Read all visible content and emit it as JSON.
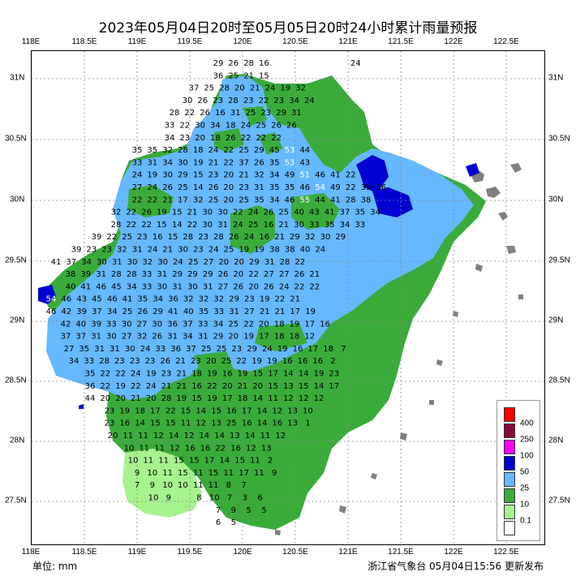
{
  "title": "2023年05月04日20时至05月05日20时24小时累计雨量预报",
  "lon_labels": [
    "118E",
    "118.5E",
    "119E",
    "119.5E",
    "120E",
    "120.5E",
    "121E",
    "121.5E",
    "122E",
    "122.5E"
  ],
  "lat_labels": [
    "31N",
    "30.5N",
    "30N",
    "29.5N",
    "29N",
    "28.5N",
    "28N",
    "27.5N"
  ],
  "unit_label": "单位:  mm",
  "issuer": "浙江省气象台  05月04日15:56  更新发布",
  "legend": [
    {
      "label": "400",
      "color": "#ff0000"
    },
    {
      "label": "250",
      "color": "#8b0a3e"
    },
    {
      "label": "100",
      "color": "#ff00ff"
    },
    {
      "label": "50",
      "color": "#0000d0"
    },
    {
      "label": "25",
      "color": "#66b8ff"
    },
    {
      "label": "10",
      "color": "#3aab3a"
    },
    {
      "label": "0.1",
      "color": "#a6f28f"
    },
    {
      "label": "",
      "color": "#ffffff"
    }
  ],
  "colors": {
    "no_data": "#808080",
    "grid": "#888888"
  },
  "rain_values": [
    [
      "29",
      "26",
      "28",
      "16",
      "",
      "",
      "",
      "",
      "",
      "24"
    ],
    [
      "36",
      "25",
      "21",
      "15",
      "",
      "",
      "",
      "",
      "",
      "",
      ""
    ],
    [
      "37",
      "25",
      "28",
      "20",
      "21",
      "24",
      "19",
      "32"
    ],
    [
      "30",
      "26",
      "23",
      "28",
      "23",
      "22",
      "23",
      "34",
      "24"
    ],
    [
      "28",
      "22",
      "26",
      "16",
      "31",
      "25",
      "23",
      "29",
      "31"
    ],
    [
      "33",
      "22",
      "30",
      "34",
      "18",
      "24",
      "25",
      "26",
      "26"
    ],
    [
      "34",
      "23",
      "20",
      "18",
      "26",
      "22",
      "22",
      "22"
    ],
    [
      "35",
      "35",
      "32",
      "28",
      "18",
      "24",
      "22",
      "25",
      "29",
      "45",
      "53",
      "44"
    ],
    [
      "33",
      "31",
      "34",
      "30",
      "19",
      "21",
      "22",
      "37",
      "26",
      "35",
      "53",
      "43"
    ],
    [
      "24",
      "19",
      "30",
      "29",
      "15",
      "23",
      "20",
      "21",
      "32",
      "34",
      "49",
      "51",
      "46",
      "41",
      "22"
    ],
    [
      "27",
      "24",
      "26",
      "25",
      "14",
      "26",
      "20",
      "23",
      "31",
      "35",
      "35",
      "46",
      "54",
      "49",
      "22",
      "39",
      "36"
    ],
    [
      "22",
      "22",
      "21",
      "17",
      "32",
      "25",
      "20",
      "25",
      "35",
      "34",
      "46",
      "55",
      "44",
      "41",
      "28",
      "38"
    ],
    [
      "32",
      "22",
      "26",
      "19",
      "15",
      "21",
      "30",
      "30",
      "22",
      "24",
      "26",
      "25",
      "40",
      "43",
      "41",
      "37",
      "35",
      "34"
    ],
    [
      "28",
      "22",
      "22",
      "15",
      "14",
      "22",
      "30",
      "31",
      "24",
      "25",
      "16",
      "21",
      "30",
      "33",
      "35",
      "34",
      "33"
    ],
    [
      "39",
      "22",
      "25",
      "23",
      "16",
      "15",
      "28",
      "23",
      "28",
      "26",
      "24",
      "16",
      "21",
      "29",
      "32",
      "30",
      "29"
    ],
    [
      "39",
      "23",
      "23",
      "32",
      "31",
      "24",
      "21",
      "30",
      "23",
      "24",
      "25",
      "19",
      "19",
      "38",
      "38",
      "40",
      "24"
    ],
    [
      "41",
      "37",
      "34",
      "30",
      "31",
      "30",
      "32",
      "30",
      "24",
      "25",
      "27",
      "20",
      "20",
      "29",
      "31",
      "28",
      "22"
    ],
    [
      "38",
      "39",
      "31",
      "28",
      "28",
      "33",
      "31",
      "29",
      "29",
      "29",
      "26",
      "20",
      "22",
      "27",
      "27",
      "26",
      "21"
    ],
    [
      "40",
      "41",
      "46",
      "45",
      "34",
      "33",
      "30",
      "31",
      "30",
      "31",
      "27",
      "26",
      "20",
      "26",
      "24",
      "22",
      "22"
    ],
    [
      "54",
      "46",
      "43",
      "45",
      "46",
      "41",
      "35",
      "34",
      "36",
      "32",
      "32",
      "32",
      "29",
      "23",
      "19",
      "22",
      "21"
    ],
    [
      "46",
      "42",
      "39",
      "37",
      "34",
      "25",
      "26",
      "29",
      "41",
      "40",
      "35",
      "33",
      "31",
      "27",
      "21",
      "21",
      "17",
      "19"
    ],
    [
      "42",
      "40",
      "39",
      "33",
      "30",
      "27",
      "30",
      "36",
      "37",
      "33",
      "34",
      "25",
      "22",
      "20",
      "18",
      "19",
      "17",
      "16"
    ],
    [
      "37",
      "37",
      "31",
      "30",
      "27",
      "32",
      "26",
      "31",
      "34",
      "31",
      "29",
      "20",
      "19",
      "17",
      "18",
      "18",
      "12"
    ],
    [
      "27",
      "35",
      "31",
      "31",
      "30",
      "24",
      "33",
      "36",
      "37",
      "25",
      "25",
      "23",
      "29",
      "24",
      "19",
      "16",
      "17",
      "18",
      "7"
    ],
    [
      "34",
      "33",
      "28",
      "23",
      "23",
      "23",
      "26",
      "21",
      "23",
      "20",
      "25",
      "22",
      "19",
      "19",
      "16",
      "16",
      "16",
      "2"
    ],
    [
      "35",
      "22",
      "22",
      "24",
      "19",
      "23",
      "21",
      "18",
      "19",
      "16",
      "19",
      "15",
      "17",
      "14",
      "14",
      "19",
      "23"
    ],
    [
      "36",
      "22",
      "19",
      "22",
      "24",
      "21",
      "21",
      "16",
      "22",
      "20",
      "21",
      "20",
      "15",
      "13",
      "15",
      "14",
      "17"
    ],
    [
      "44",
      "20",
      "20",
      "21",
      "20",
      "28",
      "19",
      "15",
      "19",
      "17",
      "18",
      "14",
      "11",
      "12",
      "12",
      "12"
    ],
    [
      "23",
      "19",
      "18",
      "17",
      "22",
      "15",
      "14",
      "15",
      "16",
      "17",
      "14",
      "12",
      "13",
      "10"
    ],
    [
      "23",
      "16",
      "14",
      "15",
      "15",
      "11",
      "12",
      "13",
      "25",
      "16",
      "14",
      "16",
      "13",
      "1"
    ],
    [
      "20",
      "11",
      "11",
      "12",
      "14",
      "12",
      "14",
      "14",
      "13",
      "14",
      "11",
      "12"
    ],
    [
      "10",
      "11",
      "11",
      "12",
      "16",
      "16",
      "22",
      "16",
      "12",
      "13"
    ],
    [
      "10",
      "11",
      "11",
      "15",
      "15",
      "17",
      "14",
      "15",
      "11",
      "2"
    ],
    [
      "9",
      "10",
      "11",
      "15",
      "11",
      "15",
      "11",
      "17",
      "11",
      "9"
    ],
    [
      "7",
      "9",
      "10",
      "10",
      "11",
      "11",
      "8",
      "7"
    ],
    [
      "10",
      "9",
      "",
      "8",
      "10",
      "7",
      "3",
      "6"
    ],
    [
      "7",
      "9",
      "5",
      "5"
    ],
    [
      "6",
      "5"
    ]
  ]
}
